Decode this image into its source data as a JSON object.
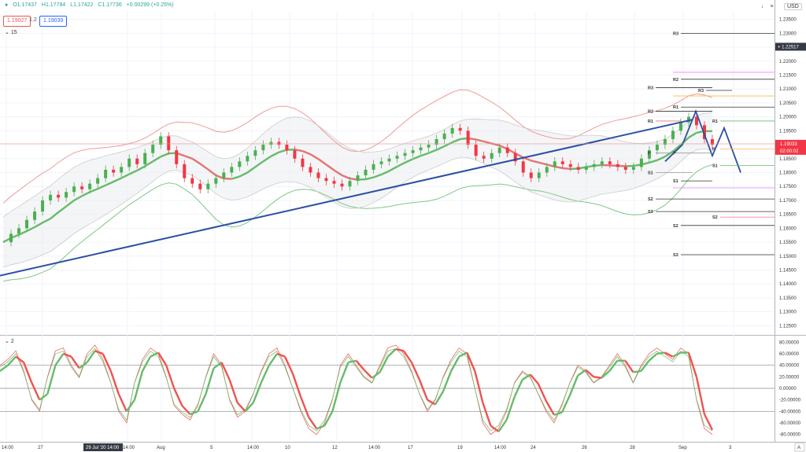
{
  "legend": {
    "dot": "●",
    "open": "O1.17437",
    "high": "H1.17784",
    "low": "L1.17422",
    "close": "C1.17736",
    "change": "+0.00299 (+0.25%)"
  },
  "trade": {
    "sell": "1.19027",
    "lot": "1.2",
    "buy": "1.19039"
  },
  "study": "15",
  "osc_label": "2",
  "currency": "USD",
  "price_axis": {
    "ticks": [
      "1.23500",
      "1.23000",
      "1.22500",
      "1.22000",
      "1.21500",
      "1.21000",
      "1.20500",
      "1.20000",
      "1.19500",
      "1.19000",
      "1.18500",
      "1.18000",
      "1.17500",
      "1.17000",
      "1.16500",
      "1.16000",
      "1.15500",
      "1.15000",
      "1.14500",
      "1.14000",
      "1.13500",
      "1.13000",
      "1.12500"
    ],
    "crosshair": "1.22517",
    "last": "1.19033",
    "countdown": "02:00:02"
  },
  "osc_axis": {
    "ticks": [
      "80.00000",
      "60.00000",
      "40.00000",
      "20.00000",
      "0.00000",
      "-20.00000",
      "-40.00000",
      "-60.00000",
      "-80.00000"
    ]
  },
  "time_axis": {
    "labels": [
      "14:00",
      "27",
      "14:00",
      "Aug",
      "5",
      "14:00",
      "10",
      "12",
      "14:00",
      "17",
      "19",
      "14:00",
      "24",
      "26",
      "28",
      "Sep",
      "3"
    ],
    "highlight": "29 Jul '20  14:00"
  },
  "pivots": [
    "R3",
    "R2",
    "R3",
    "R1",
    "R2",
    "R1",
    "R1",
    "P",
    "P",
    "P",
    "S1",
    "S1",
    "S1",
    "S2",
    "S2",
    "S3",
    "S2",
    "S3",
    "R3"
  ],
  "colors": {
    "up": "#26a69a",
    "down": "#ef5350",
    "candle_up": "#4caf50",
    "candle_down": "#f23645",
    "trend": "#2c4fa3",
    "bb_upper": "#ef9a9a",
    "bb_lower": "#81c784",
    "mid": "#e57373",
    "grid": "#f0f3fa"
  },
  "icons": {
    "tb_arrow": "↓",
    "tb_menu": "≡",
    "axis_auto": "A"
  },
  "chart_data": {
    "type": "candlestick",
    "ylim": [
      1.122,
      1.238
    ],
    "osc_ylim": [
      -90,
      90
    ],
    "close_series": [
      1.155,
      1.158,
      1.16,
      1.163,
      1.166,
      1.17,
      1.172,
      1.171,
      1.173,
      1.175,
      1.174,
      1.176,
      1.178,
      1.181,
      1.18,
      1.182,
      1.185,
      1.183,
      1.187,
      1.19,
      1.193,
      1.188,
      1.183,
      1.178,
      1.176,
      1.174,
      1.176,
      1.178,
      1.18,
      1.182,
      1.184,
      1.186,
      1.188,
      1.19,
      1.191,
      1.19,
      1.188,
      1.185,
      1.182,
      1.18,
      1.178,
      1.177,
      1.176,
      1.175,
      1.177,
      1.179,
      1.181,
      1.183,
      1.184,
      1.185,
      1.186,
      1.187,
      1.188,
      1.189,
      1.19,
      1.192,
      1.194,
      1.196,
      1.195,
      1.19,
      1.186,
      1.185,
      1.187,
      1.189,
      1.187,
      1.184,
      1.18,
      1.178,
      1.18,
      1.182,
      1.184,
      1.183,
      1.182,
      1.181,
      1.182,
      1.183,
      1.184,
      1.183,
      1.182,
      1.181,
      1.182,
      1.185,
      1.188,
      1.19,
      1.192,
      1.195,
      1.198,
      1.2,
      1.197,
      1.192,
      1.19
    ],
    "trendline_start": 1.143,
    "trendline_end": 1.199,
    "projection": [
      1.184,
      1.19,
      1.202,
      1.186,
      1.196,
      1.18
    ],
    "osc_fast": [
      40,
      50,
      65,
      30,
      -20,
      -40,
      20,
      65,
      70,
      40,
      20,
      60,
      75,
      50,
      10,
      -40,
      -60,
      10,
      50,
      70,
      60,
      20,
      -30,
      -45,
      -55,
      -30,
      20,
      60,
      40,
      -20,
      -50,
      -40,
      -10,
      30,
      60,
      70,
      40,
      0,
      -40,
      -70,
      -80,
      -60,
      -20,
      40,
      60,
      40,
      20,
      10,
      40,
      70,
      75,
      60,
      30,
      -10,
      -40,
      -20,
      20,
      50,
      70,
      60,
      0,
      -60,
      -80,
      -70,
      -40,
      10,
      30,
      20,
      -10,
      -40,
      -60,
      -30,
      10,
      40,
      30,
      10,
      20,
      40,
      60,
      40,
      10,
      40,
      60,
      70,
      60,
      50,
      70,
      60,
      -20,
      -70,
      -80
    ],
    "osc_slow": [
      30,
      40,
      55,
      45,
      10,
      -20,
      -10,
      40,
      60,
      55,
      35,
      45,
      65,
      60,
      30,
      -10,
      -40,
      -20,
      30,
      55,
      62,
      40,
      0,
      -30,
      -45,
      -40,
      -10,
      35,
      45,
      15,
      -25,
      -40,
      -25,
      10,
      40,
      60,
      55,
      25,
      -15,
      -50,
      -70,
      -65,
      -40,
      10,
      45,
      48,
      32,
      18,
      28,
      55,
      68,
      65,
      45,
      15,
      -20,
      -28,
      -5,
      30,
      55,
      62,
      30,
      -25,
      -65,
      -75,
      -55,
      -15,
      15,
      24,
      8,
      -22,
      -46,
      -42,
      -12,
      22,
      32,
      20,
      18,
      30,
      48,
      48,
      28,
      30,
      48,
      60,
      62,
      55,
      62,
      62,
      20,
      -45,
      -72
    ]
  }
}
